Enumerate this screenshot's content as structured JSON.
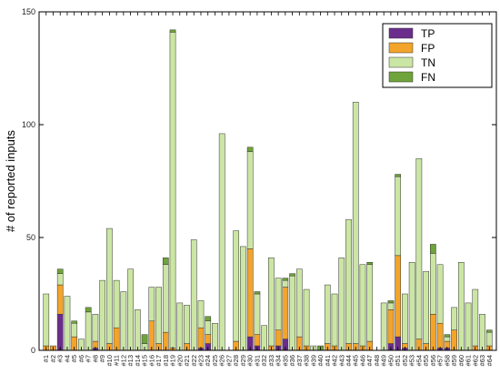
{
  "chart_data": {
    "type": "bar",
    "stacked": true,
    "title": "",
    "xlabel": "",
    "ylabel": "# of reported inputs",
    "ylim": [
      0,
      150
    ],
    "yticks": [
      0,
      50,
      100,
      150
    ],
    "grid": false,
    "legend_position": "top-right",
    "categories": [
      "#1",
      "#2",
      "#3",
      "#4",
      "#5",
      "#6",
      "#7",
      "#8",
      "#9",
      "#10",
      "#11",
      "#12",
      "#13",
      "#14",
      "#15",
      "#16",
      "#17",
      "#18",
      "#19",
      "#20",
      "#21",
      "#22",
      "#23",
      "#24",
      "#25",
      "#26",
      "#27",
      "#28",
      "#29",
      "#30",
      "#31",
      "#32",
      "#33",
      "#34",
      "#35",
      "#36",
      "#37",
      "#38",
      "#39",
      "#40",
      "#41",
      "#42",
      "#43",
      "#44",
      "#45",
      "#46",
      "#47",
      "#48",
      "#49",
      "#50",
      "#51",
      "#52",
      "#53",
      "#54",
      "#55",
      "#56",
      "#57",
      "#58",
      "#59",
      "#60",
      "#61",
      "#62",
      "#63",
      "#64"
    ],
    "series": [
      {
        "name": "TP",
        "color": "#6b2d8c",
        "values": [
          0,
          0,
          16,
          0,
          0,
          0,
          0,
          1,
          0,
          0,
          0,
          0,
          0,
          0,
          0,
          0,
          0,
          0,
          0,
          0,
          0,
          0,
          1,
          3,
          0,
          0,
          0,
          0,
          0,
          6,
          2,
          0,
          0,
          2,
          5,
          0,
          0,
          0,
          0,
          0,
          0,
          0,
          0,
          0,
          0,
          0,
          0,
          0,
          0,
          3,
          6,
          1,
          0,
          0,
          0,
          0,
          1,
          1,
          0,
          0,
          0,
          0,
          0,
          0
        ]
      },
      {
        "name": "FP",
        "color": "#f2a42b",
        "values": [
          2,
          2,
          13,
          0,
          6,
          0,
          0,
          3,
          0,
          3,
          10,
          0,
          0,
          0,
          0,
          13,
          3,
          8,
          1,
          0,
          3,
          0,
          9,
          4,
          0,
          0,
          0,
          4,
          0,
          39,
          5,
          0,
          2,
          7,
          23,
          0,
          6,
          2,
          0,
          0,
          3,
          2,
          0,
          3,
          3,
          2,
          4,
          0,
          0,
          15,
          36,
          2,
          0,
          5,
          3,
          16,
          11,
          3,
          9,
          0,
          0,
          2,
          0,
          2
        ]
      },
      {
        "name": "TN",
        "color": "#cbe6a4",
        "values": [
          23,
          0,
          5,
          24,
          6,
          5,
          17,
          12,
          31,
          51,
          21,
          26,
          36,
          18,
          3,
          15,
          25,
          30,
          140,
          21,
          17,
          49,
          12,
          6,
          12,
          96,
          0,
          49,
          46,
          43,
          18,
          11,
          39,
          23,
          3,
          33,
          30,
          25,
          2,
          0,
          26,
          23,
          41,
          55,
          107,
          36,
          34,
          0,
          21,
          3,
          35,
          22,
          39,
          80,
          32,
          27,
          26,
          2,
          10,
          39,
          21,
          25,
          16,
          6
        ]
      },
      {
        "name": "FN",
        "color": "#6fa33b",
        "values": [
          0,
          0,
          2,
          0,
          1,
          0,
          2,
          0,
          0,
          0,
          0,
          0,
          0,
          0,
          4,
          0,
          0,
          3,
          1,
          0,
          0,
          0,
          0,
          2,
          0,
          0,
          0,
          0,
          0,
          2,
          1,
          0,
          0,
          0,
          1,
          1,
          0,
          0,
          0,
          2,
          0,
          0,
          0,
          0,
          0,
          0,
          1,
          0,
          0,
          1,
          1,
          0,
          0,
          0,
          0,
          4,
          0,
          1,
          0,
          0,
          0,
          0,
          0,
          1
        ]
      }
    ]
  }
}
